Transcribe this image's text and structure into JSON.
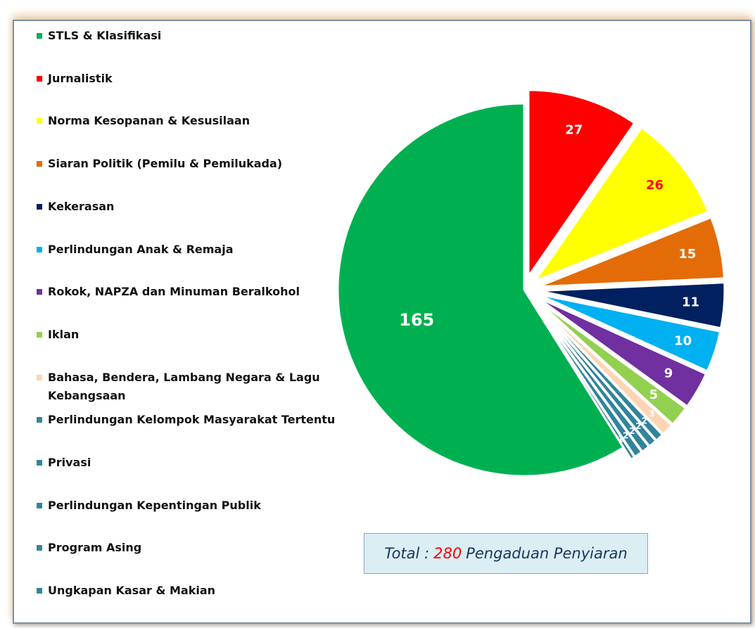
{
  "chart_data": {
    "type": "pie",
    "categories": [
      "STLS & Klasifikasi",
      "Jurnalistik",
      "Norma Kesopanan & Kesusilaan",
      "Siaran Politik (Pemilu & Pemilukada)",
      "Kekerasan",
      "Perlindungan Anak & Remaja",
      "Rokok, NAPZA dan Minuman Beralkohol",
      "Iklan",
      "Bahasa, Bendera, Lambang Negara & Lagu Kebangsaan",
      "Perlindungan Kelompok Masyarakat Tertentu",
      "Privasi",
      "Perlindungan Kepentingan Publik",
      "Program Asing",
      "Ungkapan Kasar & Makian"
    ],
    "values": [
      165,
      27,
      26,
      15,
      11,
      10,
      9,
      5,
      3,
      2,
      2,
      2,
      2,
      1
    ],
    "colors": [
      "#00b050",
      "#ff0000",
      "#ffff00",
      "#e36c09",
      "#002060",
      "#00b0f0",
      "#7030a0",
      "#92d050",
      "#fbd5b5",
      "#31849b",
      "#31849b",
      "#31849b",
      "#31849b",
      "#31849b"
    ],
    "label_colors": [
      "#ffffff",
      "#ffffff",
      "#ff0000",
      "#ffffff",
      "#ffffff",
      "#ffffff",
      "#ffffff",
      "#ffffff",
      "#ffffff",
      "#ffffff",
      "#ffffff",
      "#ffffff",
      "#ffffff",
      "#ffffff"
    ],
    "legend": "left",
    "annotation": {
      "prefix": "Total :",
      "value": 280,
      "suffix": "Pengaduan Penyiaran"
    }
  }
}
